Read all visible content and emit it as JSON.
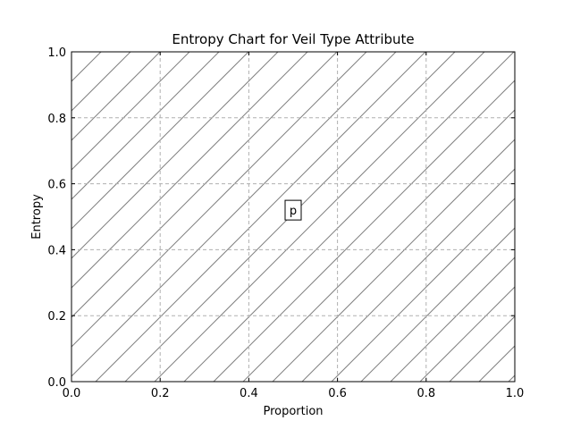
{
  "chart_data": {
    "type": "line",
    "title": "Entropy Chart for Veil Type Attribute",
    "xlabel": "Proportion",
    "ylabel": "Entropy",
    "xlim": [
      0.0,
      1.0
    ],
    "ylim": [
      0.0,
      1.0
    ],
    "x_ticks": [
      "0.0",
      "0.2",
      "0.4",
      "0.6",
      "0.8",
      "1.0"
    ],
    "y_ticks": [
      "0.0",
      "0.2",
      "0.4",
      "0.6",
      "0.8",
      "1.0"
    ],
    "grid": true,
    "series": [
      {
        "x": [
          0.0,
          1.0
        ],
        "y": [
          0.0,
          0.0
        ]
      }
    ],
    "annotations": [
      {
        "text": "p",
        "x": 0.5,
        "y": 0.52
      }
    ],
    "background_hatch": "diagonal",
    "colors": {
      "hatch": "#808080",
      "grid": "#b0b0b0",
      "axes": "#000000"
    }
  }
}
